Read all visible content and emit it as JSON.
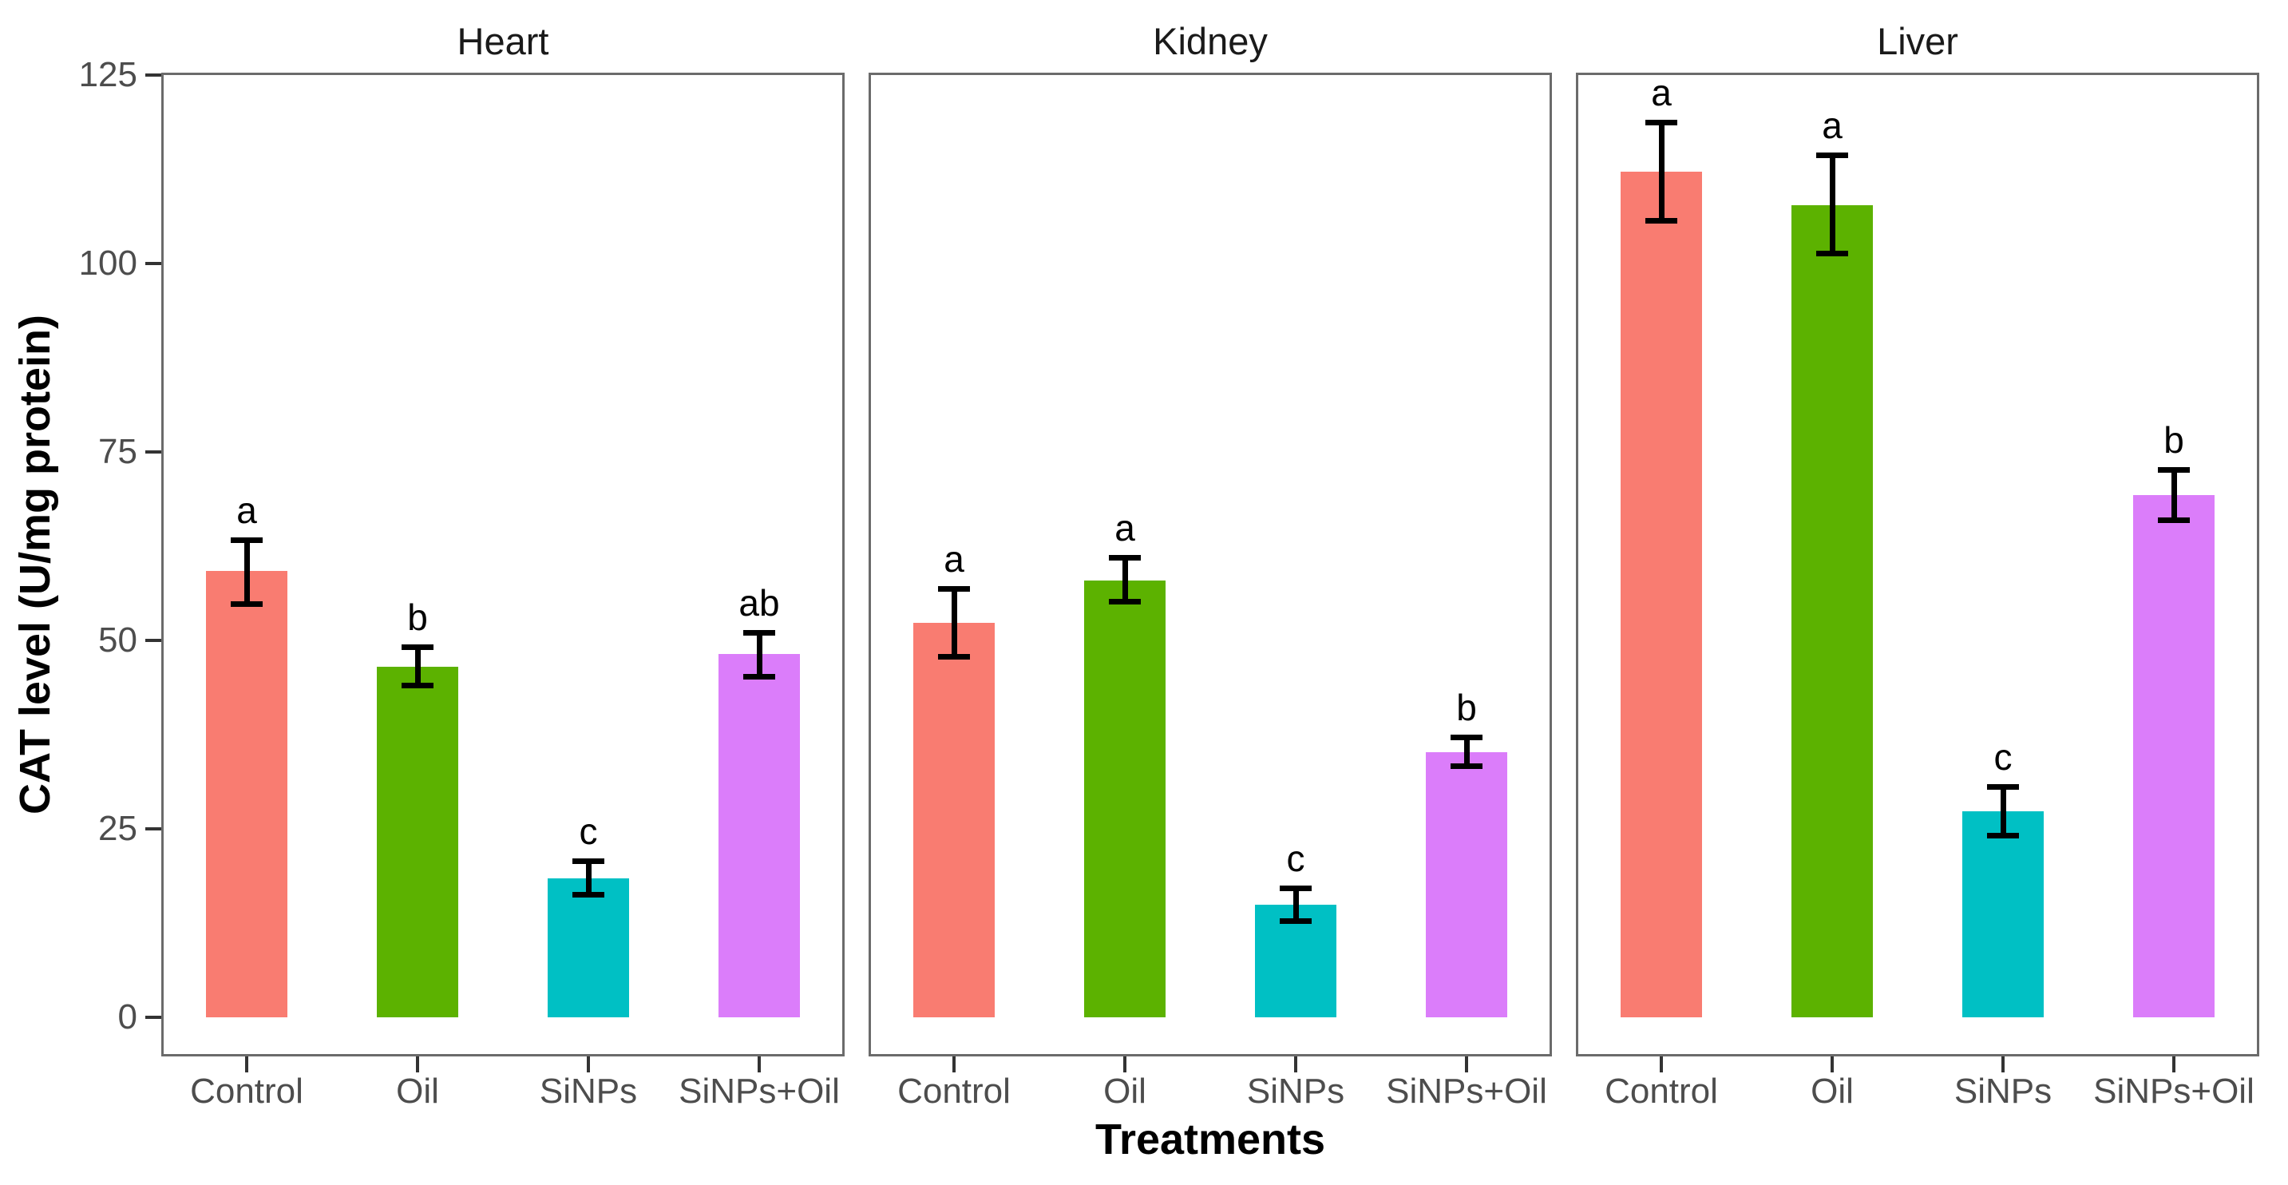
{
  "chart_data": {
    "type": "bar",
    "title": "",
    "xlabel": "Treatments",
    "ylabel": "CAT level (U/mg protein)",
    "categories": [
      "Control",
      "Oil",
      "SiNPs",
      "SiNPs+Oil"
    ],
    "y_ticks": [
      0,
      25,
      50,
      75,
      100,
      125
    ],
    "ylim": [
      0,
      125
    ],
    "grid": "off",
    "legend_position": "none",
    "error_bars": "shown",
    "colors": {
      "Control": "#F97C71",
      "Oil": "#5CB200",
      "SiNPs": "#00C0C4",
      "SiNPs+Oil": "#DB7DFA"
    },
    "facets": [
      {
        "title": "Heart",
        "bars": [
          {
            "category": "Control",
            "value": 59.2,
            "err_low": 54.9,
            "err_high": 63.3,
            "letter": "a"
          },
          {
            "category": "Oil",
            "value": 46.5,
            "err_low": 44.1,
            "err_high": 49.2,
            "letter": "b"
          },
          {
            "category": "SiNPs",
            "value": 18.4,
            "err_low": 16.3,
            "err_high": 20.8,
            "letter": "c"
          },
          {
            "category": "SiNPs+Oil",
            "value": 48.2,
            "err_low": 45.2,
            "err_high": 51.1,
            "letter": "ab"
          }
        ]
      },
      {
        "title": "Kidney",
        "bars": [
          {
            "category": "Control",
            "value": 52.3,
            "err_low": 47.9,
            "err_high": 56.9,
            "letter": "a"
          },
          {
            "category": "Oil",
            "value": 57.9,
            "err_low": 55.2,
            "err_high": 61.0,
            "letter": "a"
          },
          {
            "category": "SiNPs",
            "value": 14.9,
            "err_low": 12.8,
            "err_high": 17.2,
            "letter": "c"
          },
          {
            "category": "SiNPs+Oil",
            "value": 35.2,
            "err_low": 33.4,
            "err_high": 37.2,
            "letter": "b"
          }
        ]
      },
      {
        "title": "Liver",
        "bars": [
          {
            "category": "Control",
            "value": 112.2,
            "err_low": 105.7,
            "err_high": 118.7,
            "letter": "a"
          },
          {
            "category": "Oil",
            "value": 107.7,
            "err_low": 101.4,
            "err_high": 114.4,
            "letter": "a"
          },
          {
            "category": "SiNPs",
            "value": 27.3,
            "err_low": 24.2,
            "err_high": 30.6,
            "letter": "c"
          },
          {
            "category": "SiNPs+Oil",
            "value": 69.3,
            "err_low": 66.0,
            "err_high": 72.7,
            "letter": "b"
          }
        ]
      }
    ],
    "text_colors": {
      "tick_labels": "#4d4d4d",
      "facet_titles": "#1a1a1a",
      "axis_titles": "#000000",
      "significance_letters": "#000000"
    }
  }
}
